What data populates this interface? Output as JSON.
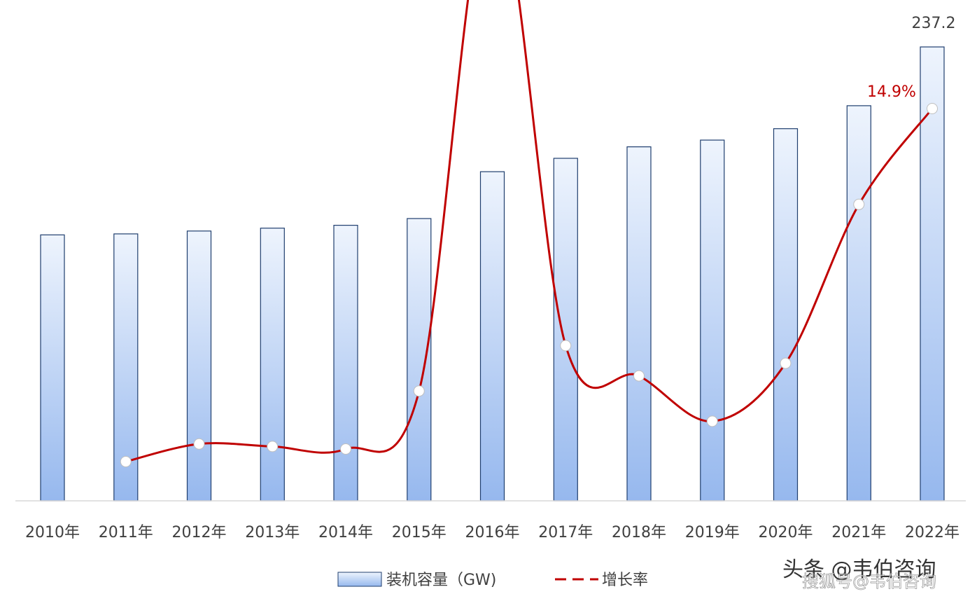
{
  "chart_data": {
    "type": "bar",
    "categories": [
      "2010年",
      "2011年",
      "2012年",
      "2013年",
      "2014年",
      "2015年",
      "2016年",
      "2017年",
      "2018年",
      "2019年",
      "2020年",
      "2021年",
      "2022年"
    ],
    "series": [
      {
        "name": "装机容量（GW)",
        "kind": "bar",
        "values": [
          139,
          139.5,
          141,
          142.5,
          144,
          147.5,
          172,
          179,
          185,
          188.5,
          194.5,
          206.5,
          237.2
        ],
        "labeled_index": 12,
        "label": "237.2"
      },
      {
        "name": "增长率",
        "kind": "line",
        "values": [
          null,
          0.9,
          1.6,
          1.5,
          1.4,
          3.7,
          23.7,
          5.5,
          4.3,
          2.5,
          4.8,
          11.1,
          14.9
        ],
        "labeled_index": 12,
        "label": "14.9%"
      }
    ],
    "grid": false,
    "legend_position": "bottom-center",
    "colors": {
      "bar_fill_top": "#eef4fd",
      "bar_fill_bottom": "#96b8ee",
      "bar_stroke": "#1f3e6e",
      "line": "#c00000",
      "marker_fill": "#ffffff",
      "axis": "#d9d9d9"
    }
  },
  "watermark": "头条 @韦伯咨询",
  "watermark_secondary": "搜狐号@韦伯咨询"
}
